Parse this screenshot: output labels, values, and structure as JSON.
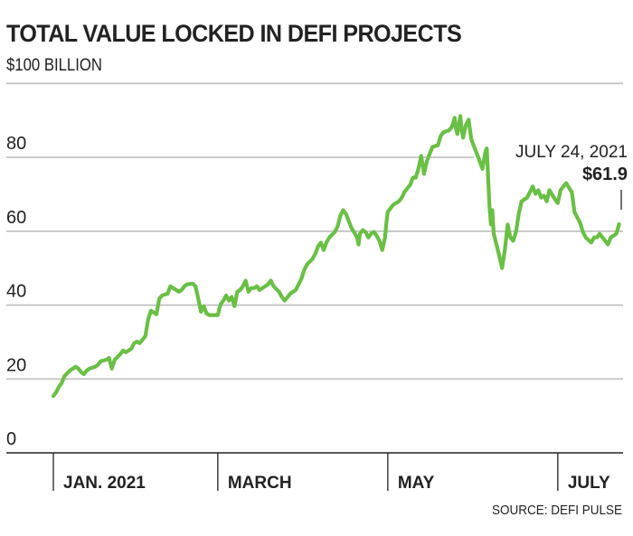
{
  "chart_data": {
    "type": "line",
    "title": "TOTAL VALUE LOCKED IN DEFI PROJECTS",
    "subtitle": "$100 BILLION",
    "ylabel": "$ billion",
    "xlabel": "",
    "ylim": [
      0,
      100
    ],
    "yticks": [
      0,
      20,
      40,
      60,
      80,
      100
    ],
    "ytick_labels": [
      "0",
      "20",
      "40",
      "60",
      "80",
      ""
    ],
    "xlim": [
      "2021-01-01",
      "2021-07-24"
    ],
    "xticks": [
      {
        "date": "2021-01-01",
        "label": "JAN. 2021"
      },
      {
        "date": "2021-03-01",
        "label": "MARCH"
      },
      {
        "date": "2021-05-01",
        "label": "MAY"
      },
      {
        "date": "2021-07-01",
        "label": "JULY"
      }
    ],
    "grid": true,
    "line_color": "#6abf45",
    "annotation": {
      "date_label": "JULY 24, 2021",
      "value_label": "$61.9",
      "value": 61.9
    },
    "source": "SOURCE: DEFI PULSE",
    "series": [
      {
        "name": "Total value locked",
        "points": [
          [
            0,
            15.4
          ],
          [
            1,
            16.4
          ],
          [
            2,
            17.9
          ],
          [
            3,
            18.9
          ],
          [
            4,
            20.8
          ],
          [
            6,
            22.3
          ],
          [
            7,
            22.8
          ],
          [
            8,
            23.3
          ],
          [
            9,
            22.8
          ],
          [
            10,
            21.8
          ],
          [
            11,
            21.3
          ],
          [
            12,
            22.3
          ],
          [
            13,
            22.8
          ],
          [
            15,
            23.3
          ],
          [
            16,
            23.8
          ],
          [
            17,
            24.8
          ],
          [
            19,
            25.2
          ],
          [
            20,
            25.7
          ],
          [
            21,
            22.8
          ],
          [
            22,
            25.2
          ],
          [
            24,
            26.7
          ],
          [
            25,
            27.7
          ],
          [
            26,
            27.2
          ],
          [
            28,
            28.2
          ],
          [
            29,
            29.7
          ],
          [
            30,
            30.1
          ],
          [
            31,
            29.7
          ],
          [
            33,
            31.6
          ],
          [
            34,
            36.1
          ],
          [
            35,
            38.5
          ],
          [
            37,
            37.5
          ],
          [
            38,
            41.7
          ],
          [
            39,
            42.6
          ],
          [
            41,
            43.1
          ],
          [
            42,
            45.1
          ],
          [
            43,
            44.6
          ],
          [
            45,
            43.6
          ],
          [
            46,
            44.1
          ],
          [
            47,
            45.1
          ],
          [
            48,
            45.6
          ],
          [
            50,
            45.8
          ],
          [
            51,
            45.1
          ],
          [
            52,
            41.7
          ],
          [
            53,
            38.2
          ],
          [
            54,
            39.7
          ],
          [
            55,
            37.7
          ],
          [
            56,
            37.3
          ],
          [
            58,
            37.3
          ],
          [
            59,
            37.3
          ],
          [
            60,
            40.2
          ],
          [
            61,
            41.2
          ],
          [
            62,
            42.6
          ],
          [
            63,
            41.2
          ],
          [
            64,
            42.2
          ],
          [
            65,
            39.7
          ],
          [
            66,
            43.6
          ],
          [
            67,
            44.1
          ],
          [
            68,
            45.1
          ],
          [
            69,
            46.6
          ],
          [
            70,
            43.6
          ],
          [
            71,
            44.6
          ],
          [
            72,
            44.6
          ],
          [
            73,
            45.1
          ],
          [
            74,
            44.1
          ],
          [
            76,
            45.1
          ],
          [
            77,
            45.6
          ],
          [
            78,
            46.6
          ],
          [
            79,
            45.1
          ],
          [
            81,
            43.6
          ],
          [
            82,
            42.2
          ],
          [
            83,
            41.2
          ],
          [
            85,
            43.1
          ],
          [
            86,
            43.6
          ],
          [
            87,
            44.1
          ],
          [
            89,
            47.1
          ],
          [
            90,
            49.5
          ],
          [
            91,
            51.0
          ],
          [
            93,
            52.5
          ],
          [
            94,
            53.9
          ],
          [
            95,
            55.9
          ],
          [
            96,
            56.9
          ],
          [
            97,
            54.9
          ],
          [
            98,
            56.9
          ],
          [
            99,
            58.3
          ],
          [
            101,
            59.8
          ],
          [
            102,
            61.3
          ],
          [
            103,
            64.2
          ],
          [
            104,
            65.7
          ],
          [
            105,
            64.7
          ],
          [
            106,
            62.7
          ],
          [
            107,
            60.8
          ],
          [
            109,
            58.3
          ],
          [
            109.5,
            56.4
          ],
          [
            110,
            59.3
          ],
          [
            111,
            60.3
          ],
          [
            112,
            59.8
          ],
          [
            113,
            58.3
          ],
          [
            114,
            59.3
          ],
          [
            115,
            59.8
          ],
          [
            116,
            58.8
          ],
          [
            117,
            57.4
          ],
          [
            118,
            54.9
          ],
          [
            119,
            58.3
          ],
          [
            119.5,
            62.3
          ],
          [
            120,
            65.2
          ],
          [
            121,
            66.2
          ],
          [
            122,
            67.2
          ],
          [
            124,
            68.1
          ],
          [
            125,
            69.1
          ],
          [
            126,
            70.6
          ],
          [
            127,
            71.6
          ],
          [
            128,
            72.5
          ],
          [
            129,
            74.5
          ],
          [
            130,
            74.5
          ],
          [
            131,
            76.9
          ],
          [
            132,
            80.4
          ],
          [
            132.5,
            78.0
          ],
          [
            133,
            75.5
          ],
          [
            134,
            78.9
          ],
          [
            135,
            80.9
          ],
          [
            136,
            82.8
          ],
          [
            138,
            83.3
          ],
          [
            139,
            85.8
          ],
          [
            140,
            86.8
          ],
          [
            142,
            87.3
          ],
          [
            143,
            88.2
          ],
          [
            144,
            90.7
          ],
          [
            144.5,
            87.7
          ],
          [
            145,
            86.3
          ],
          [
            146,
            91.2
          ],
          [
            146.5,
            87.7
          ],
          [
            147,
            85.3
          ],
          [
            148,
            88.7
          ],
          [
            149,
            90.2
          ],
          [
            149.5,
            87.3
          ],
          [
            150,
            84.8
          ],
          [
            151,
            82.8
          ],
          [
            152,
            80.9
          ],
          [
            153,
            78.9
          ],
          [
            154,
            76.9
          ],
          [
            155,
            81.4
          ],
          [
            155.5,
            82.4
          ],
          [
            156,
            74.5
          ],
          [
            156.5,
            66.7
          ],
          [
            157,
            61.8
          ],
          [
            157.5,
            65.7
          ],
          [
            158,
            59.3
          ],
          [
            159,
            56.4
          ],
          [
            160,
            53.4
          ],
          [
            161,
            50.0
          ],
          [
            162,
            54.9
          ],
          [
            163,
            61.8
          ],
          [
            164,
            58.3
          ],
          [
            165,
            57.4
          ],
          [
            166,
            59.8
          ],
          [
            167,
            64.7
          ],
          [
            168,
            68.1
          ],
          [
            170,
            69.1
          ],
          [
            171,
            70.6
          ],
          [
            172,
            72.1
          ],
          [
            173,
            70.1
          ],
          [
            174,
            71.1
          ],
          [
            175,
            69.1
          ],
          [
            176,
            69.6
          ],
          [
            177,
            68.1
          ],
          [
            178,
            71.1
          ],
          [
            180,
            68.6
          ],
          [
            181,
            67.6
          ],
          [
            182,
            71.1
          ],
          [
            183,
            72.1
          ],
          [
            184,
            73.0
          ],
          [
            186,
            70.6
          ],
          [
            187,
            65.2
          ],
          [
            188,
            63.7
          ],
          [
            189,
            62.3
          ],
          [
            190,
            59.8
          ],
          [
            191,
            58.3
          ],
          [
            193,
            56.9
          ],
          [
            194,
            58.3
          ],
          [
            195,
            58.3
          ],
          [
            196,
            59.3
          ],
          [
            197,
            58.3
          ],
          [
            198,
            57.4
          ],
          [
            199,
            56.4
          ],
          [
            200,
            58.3
          ],
          [
            202,
            59.3
          ],
          [
            203,
            61.9
          ]
        ]
      }
    ]
  }
}
